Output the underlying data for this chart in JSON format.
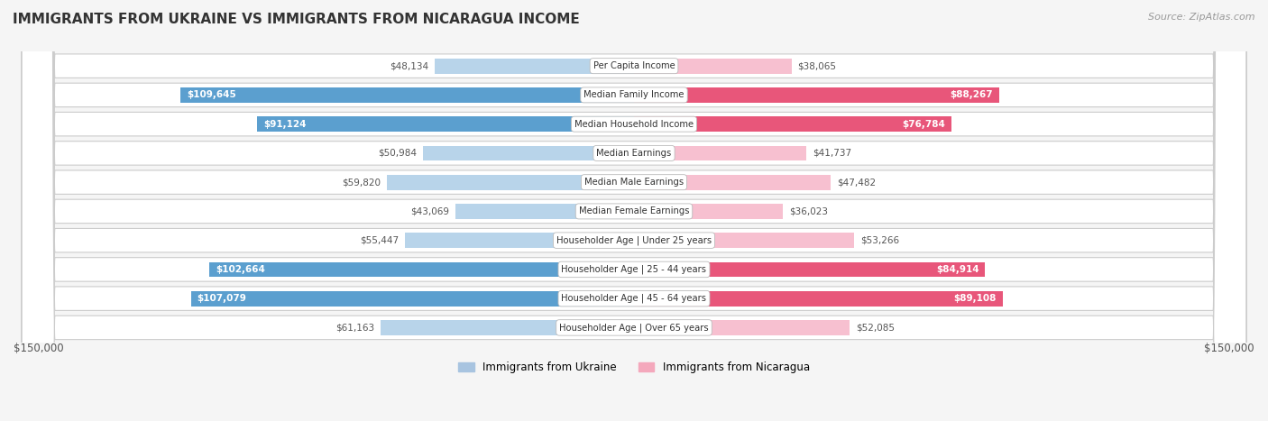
{
  "title": "IMMIGRANTS FROM UKRAINE VS IMMIGRANTS FROM NICARAGUA INCOME",
  "source": "Source: ZipAtlas.com",
  "categories": [
    "Per Capita Income",
    "Median Family Income",
    "Median Household Income",
    "Median Earnings",
    "Median Male Earnings",
    "Median Female Earnings",
    "Householder Age | Under 25 years",
    "Householder Age | 25 - 44 years",
    "Householder Age | 45 - 64 years",
    "Householder Age | Over 65 years"
  ],
  "ukraine_values": [
    48134,
    109645,
    91124,
    50984,
    59820,
    43069,
    55447,
    102664,
    107079,
    61163
  ],
  "nicaragua_values": [
    38065,
    88267,
    76784,
    41737,
    47482,
    36023,
    53266,
    84914,
    89108,
    52085
  ],
  "ukraine_labels": [
    "$48,134",
    "$109,645",
    "$91,124",
    "$50,984",
    "$59,820",
    "$43,069",
    "$55,447",
    "$102,664",
    "$107,079",
    "$61,163"
  ],
  "nicaragua_labels": [
    "$38,065",
    "$88,267",
    "$76,784",
    "$41,737",
    "$47,482",
    "$36,023",
    "$53,266",
    "$84,914",
    "$89,108",
    "$52,085"
  ],
  "ukraine_bar_light": "#b8d4ea",
  "ukraine_bar_dark": "#5b9fcf",
  "nicaragua_bar_light": "#f7c0d0",
  "nicaragua_bar_dark": "#e8567a",
  "ukraine_label_inside_bg": "#5b9fcf",
  "nicaragua_label_inside_bg": "#e8567a",
  "ukraine_legend_color": "#a8c4e0",
  "nicaragua_legend_color": "#f4a8bc",
  "max_value": 150000,
  "bar_height": 0.52,
  "row_bg_light": "#f0f0f0",
  "row_bg_dark": "#e0e0e0",
  "fig_bg": "#f5f5f5",
  "xlabel_left": "$150,000",
  "xlabel_right": "$150,000",
  "inside_label_threshold": 75000
}
